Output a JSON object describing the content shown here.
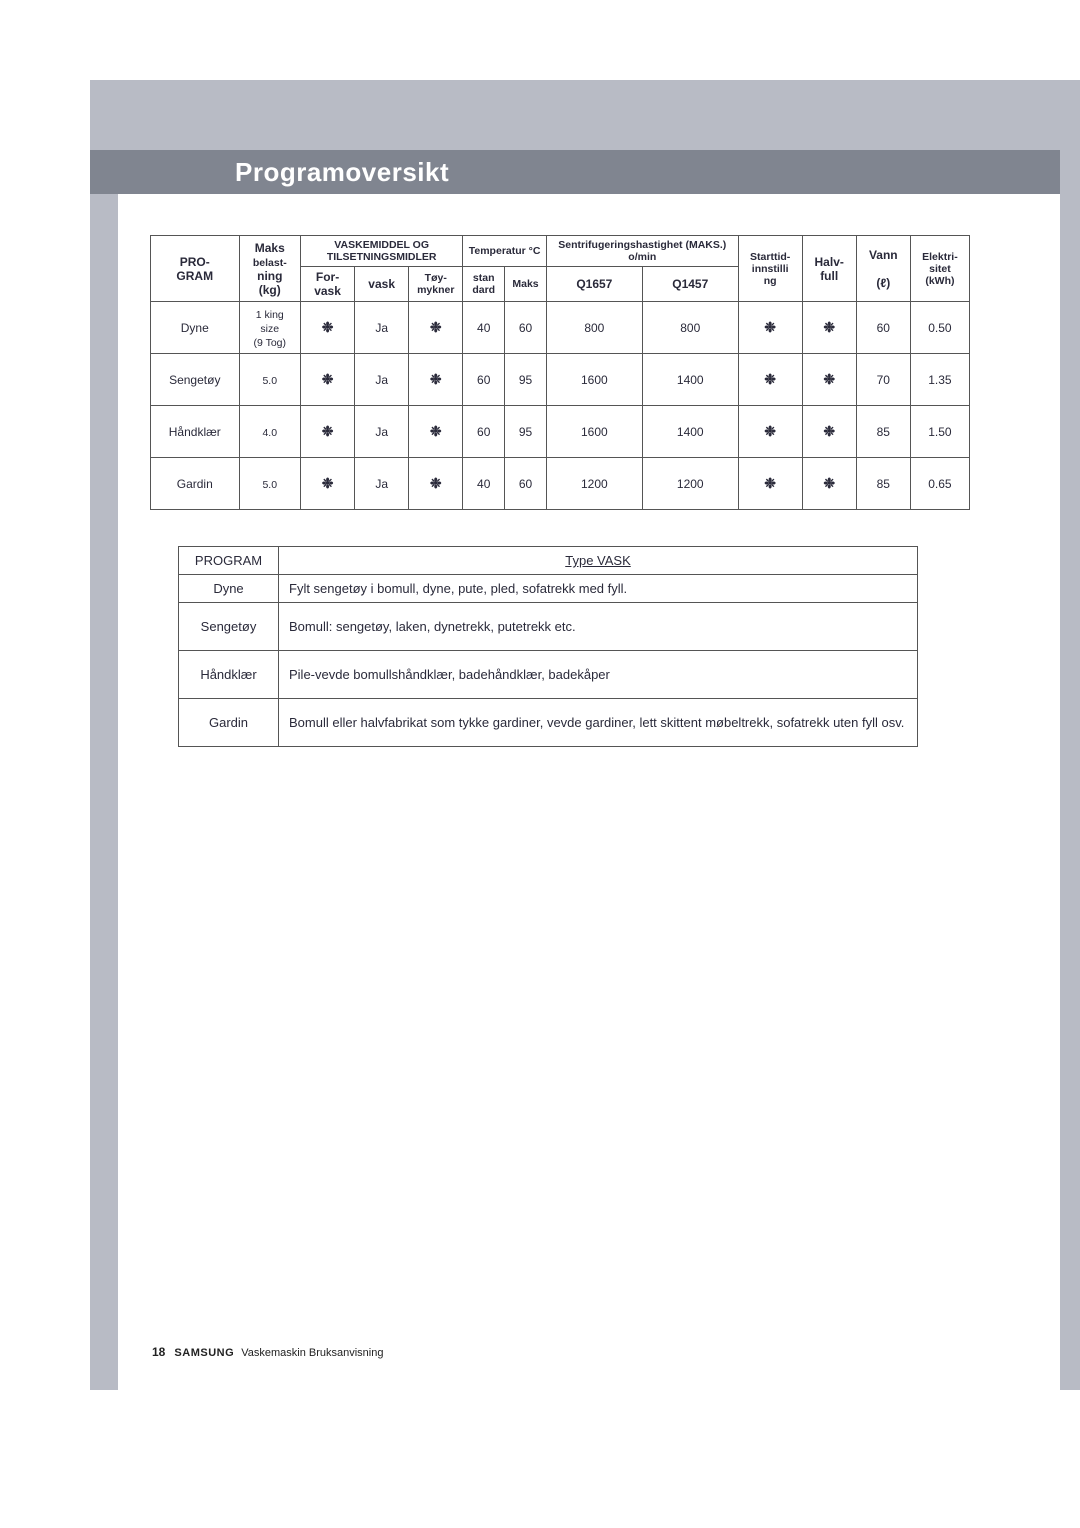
{
  "title": "Programoversikt",
  "footer": {
    "page": "18",
    "brand": "SAMSUNG",
    "text": "Vaskemaskin Bruksanvisning"
  },
  "headers": {
    "program_top": "PRO-",
    "program_bot": "GRAM",
    "maks_top": "Maks",
    "maks_mid": "belast-",
    "belast_ning": "ning",
    "belast_kg": "(kg)",
    "vaskemiddel": "VASKEMIDDEL OG TILSETNINGSMIDLER",
    "forvask_a": "For-",
    "forvask_b": "vask",
    "vask": "vask",
    "toy_a": "Tøy-",
    "toy_b": "mykner",
    "temp": "Temperatur °C",
    "stan_a": "stan",
    "stan_b": "dard",
    "maks": "Maks",
    "sentrifug": "Sentrifugeringshastighet (MAKS.) o/min",
    "q1657": "Q1657",
    "q1457": "Q1457",
    "starttid": "Starttid-innstilli",
    "starttid_b": "ng",
    "halv": "Halv-",
    "halv_b": "full",
    "vann": "Vann",
    "vann_b": "(ℓ)",
    "elek": "Elektri-sitet",
    "elek_b": "(kWh)"
  },
  "rows": [
    {
      "program": "Dyne",
      "belast": [
        "1 king",
        "size",
        "(9 Tog)"
      ],
      "forvask": "❉",
      "vask": "Ja",
      "toy": "❉",
      "stan": "40",
      "maks": "60",
      "q1657": "800",
      "q1457": "800",
      "start": "❉",
      "halv": "❉",
      "vann": "60",
      "elek": "0.50"
    },
    {
      "program": "Sengetøy",
      "belast": [
        "5.0"
      ],
      "forvask": "❉",
      "vask": "Ja",
      "toy": "❉",
      "stan": "60",
      "maks": "95",
      "q1657": "1600",
      "q1457": "1400",
      "start": "❉",
      "halv": "❉",
      "vann": "70",
      "elek": "1.35"
    },
    {
      "program": "Håndklær",
      "belast": [
        "4.0"
      ],
      "forvask": "❉",
      "vask": "Ja",
      "toy": "❉",
      "stan": "60",
      "maks": "95",
      "q1657": "1600",
      "q1457": "1400",
      "start": "❉",
      "halv": "❉",
      "vann": "85",
      "elek": "1.50"
    },
    {
      "program": "Gardin",
      "belast": [
        "5.0"
      ],
      "forvask": "❉",
      "vask": "Ja",
      "toy": "❉",
      "stan": "40",
      "maks": "60",
      "q1657": "1200",
      "q1457": "1200",
      "start": "❉",
      "halv": "❉",
      "vann": "85",
      "elek": "0.65"
    }
  ],
  "desc": {
    "h1": "PROGRAM",
    "h2": "Type VASK",
    "rows": [
      {
        "p": "Dyne",
        "t": "Fylt sengetøy i bomull, dyne, pute, pled, sofatrekk med fyll."
      },
      {
        "p": "Sengetøy",
        "t": "Bomull: sengetøy, laken, dynetrekk, putetrekk etc."
      },
      {
        "p": "Håndklær",
        "t": "Pile-vevde bomullshåndklær, badehåndklær, badekåper"
      },
      {
        "p": "Gardin",
        "t": "Bomull eller halvfabrikat som tykke gardiner, vevde gardiner, lett skittent møbeltrekk, sofatrekk uten fyll osv."
      }
    ]
  },
  "style": {
    "header_bg": "#b8bbc5",
    "title_bg": "#808590",
    "title_color": "#ffffff",
    "text_color": "#2a2a3a",
    "border_color": "#555555"
  }
}
